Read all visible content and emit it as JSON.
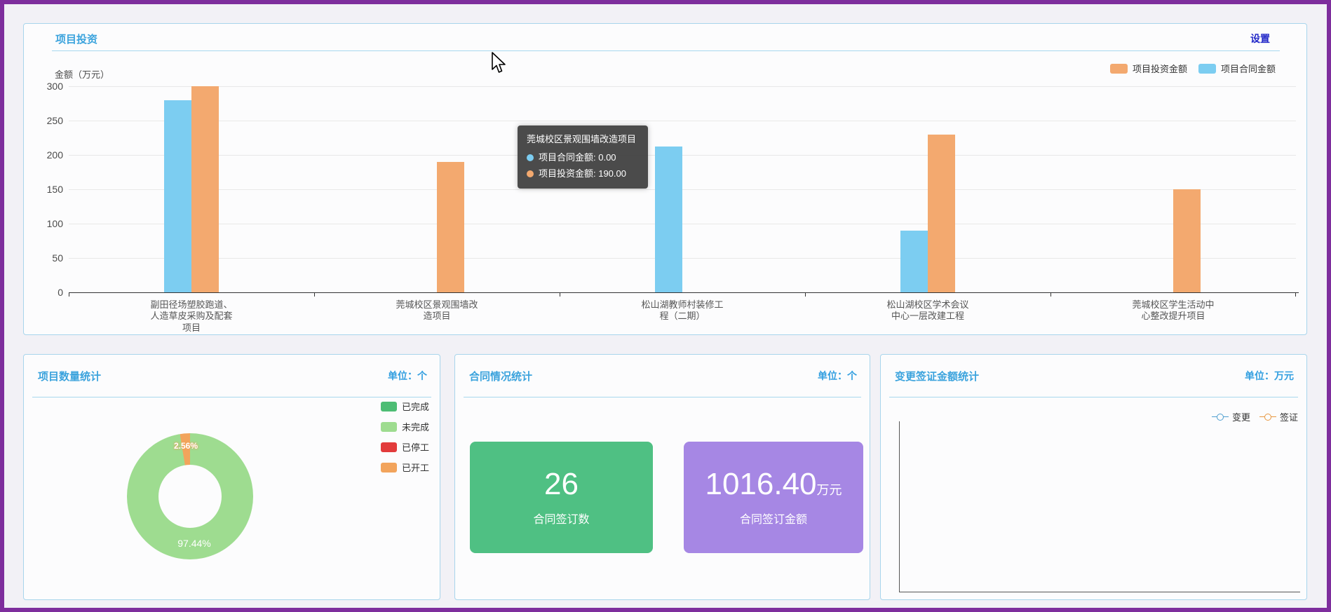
{
  "page": {
    "border_color": "#7e2e9d",
    "background": "#f2f1f6"
  },
  "investment_panel": {
    "title": "项目投资",
    "settings_label": "设置",
    "y_axis_title": "金额（万元）",
    "legend": [
      {
        "label": "项目投资金额",
        "color": "#f3a96f"
      },
      {
        "label": "项目合同金额",
        "color": "#7ccdf1"
      }
    ],
    "tooltip": {
      "title": "莞城校区景观围墙改造项目",
      "rows": [
        {
          "text": "项目合同金额: 0.00",
          "color": "#7ccdf1"
        },
        {
          "text": "项目投资金额: 190.00",
          "color": "#f3a96f"
        }
      ]
    }
  },
  "project_count_panel": {
    "title": "项目数量统计",
    "unit_label": "单位：个",
    "slices": [
      {
        "label": "已完成",
        "pct": 0,
        "color": "#4dbd74"
      },
      {
        "label": "未完成",
        "pct": 97.44,
        "color": "#9edc90"
      },
      {
        "label": "已停工",
        "pct": 0,
        "color": "#e23b3b"
      },
      {
        "label": "已开工",
        "pct": 2.56,
        "color": "#f2a45c"
      }
    ],
    "small_label": "2.56%",
    "big_label": "97.44%"
  },
  "contract_panel": {
    "title": "合同情况统计",
    "unit_label": "单位：个",
    "cards": [
      {
        "value": "26",
        "suffix": "",
        "label": "合同签订数",
        "color": "#4fc083"
      },
      {
        "value": "1016.40",
        "suffix": "万元",
        "label": "合同签订金额",
        "color": "#a687e4"
      }
    ]
  },
  "change_panel": {
    "title": "变更签证金额统计",
    "unit_label": "单位：万元",
    "legend": [
      {
        "label": "变更",
        "color": "#4f9fd0"
      },
      {
        "label": "签证",
        "color": "#e8973f"
      }
    ]
  },
  "chart_data": [
    {
      "type": "bar",
      "title": "项目投资",
      "ylabel": "金额（万元）",
      "ylim": [
        0,
        300
      ],
      "y_ticks": [
        0,
        50,
        100,
        150,
        200,
        250,
        300
      ],
      "grid": true,
      "legend_position": "top-right",
      "categories": [
        "副田径场塑胶跑道、人造草皮采购及配套项目",
        "莞城校区景观围墙改造项目",
        "松山湖教师村装修工程（二期）",
        "松山湖校区学术会议中心一层改建工程",
        "莞城校区学生活动中心整改提升项目"
      ],
      "series": [
        {
          "name": "项目合同金额",
          "color": "#7ccdf1",
          "values": [
            280,
            0,
            212,
            90,
            0
          ]
        },
        {
          "name": "项目投资金额",
          "color": "#f3a96f",
          "values": [
            300,
            190,
            0,
            230,
            150
          ]
        }
      ]
    },
    {
      "type": "pie",
      "title": "项目数量统计",
      "categories": [
        "已完成",
        "未完成",
        "已停工",
        "已开工"
      ],
      "values": [
        0,
        97.44,
        0,
        2.56
      ],
      "unit": "%",
      "legend_position": "right"
    },
    {
      "type": "line",
      "title": "变更签证金额统计",
      "categories": [],
      "series": [
        {
          "name": "变更",
          "values": []
        },
        {
          "name": "签证",
          "values": []
        }
      ],
      "note": "empty-chart-axes-only"
    }
  ]
}
